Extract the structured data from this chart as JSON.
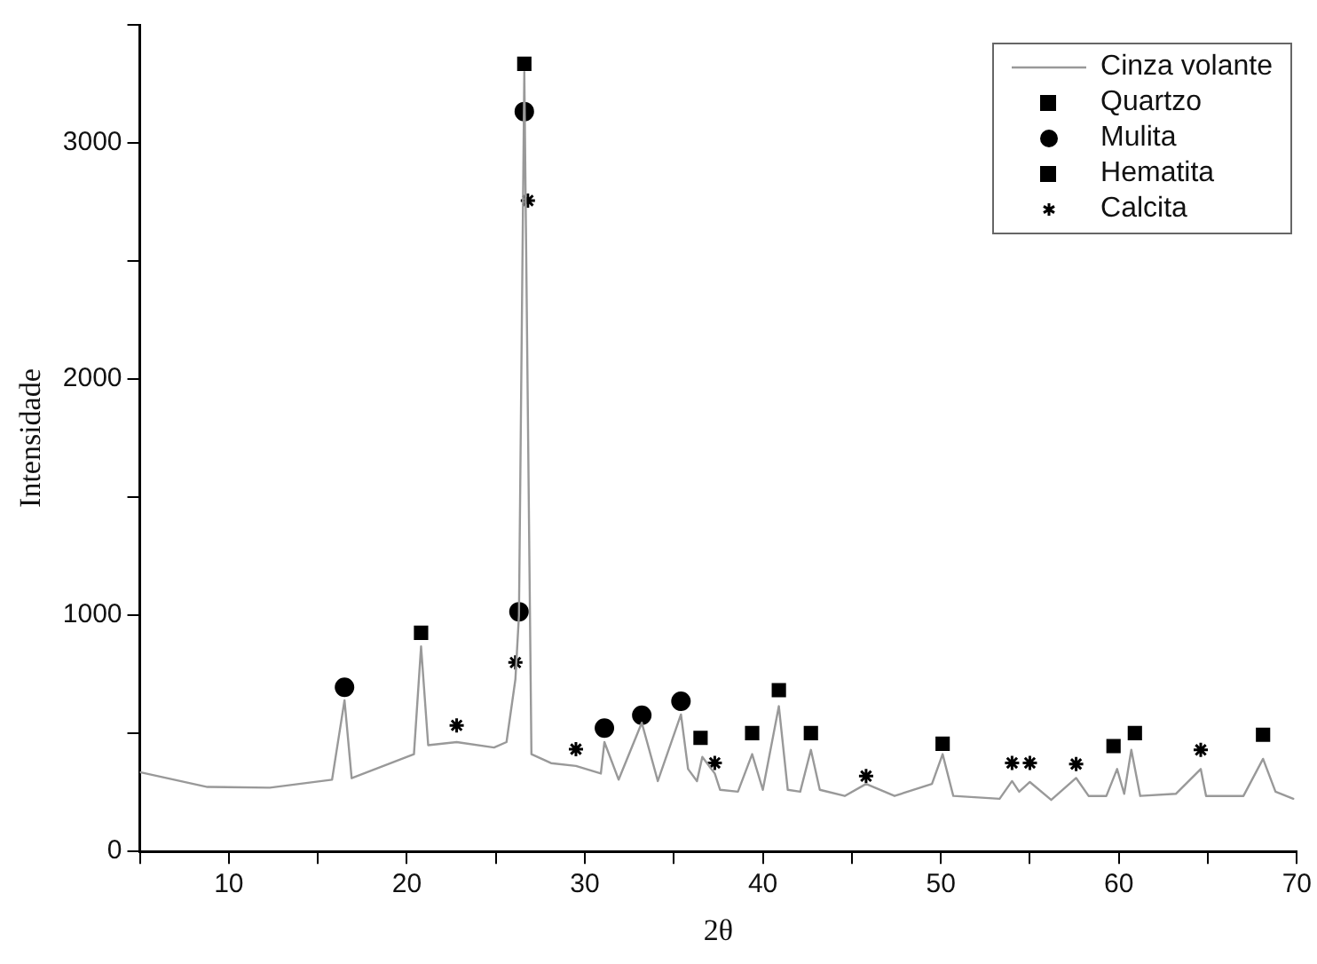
{
  "chart_data": {
    "type": "line",
    "xlabel": "2θ",
    "ylabel": "Intensidade",
    "xlim": [
      5,
      70
    ],
    "xticks": [
      {
        "value": 5,
        "label": null
      },
      10,
      {
        "value": 15,
        "label": null
      },
      20,
      {
        "value": 25,
        "label": null
      },
      30,
      {
        "value": 35,
        "label": null
      },
      40,
      {
        "value": 45,
        "label": null
      },
      50,
      {
        "value": 55,
        "label": null
      },
      60,
      {
        "value": 65,
        "label": null
      },
      70
    ],
    "ylim": [
      0,
      3500
    ],
    "yticks": [
      0,
      {
        "value": 500,
        "label": null
      },
      1000,
      {
        "value": 1500,
        "label": null
      },
      2000,
      {
        "value": 2500,
        "label": null
      },
      3000,
      {
        "value": 3500,
        "label": null
      }
    ],
    "grid": false,
    "legend": "top right",
    "series": [
      {
        "name": "Cinza volante",
        "color": "#999999",
        "marker": "none",
        "x": [
          5,
          8.8,
          12.3,
          15.8,
          16.5,
          16.9,
          20.4,
          20.8,
          21.2,
          22.8,
          24.9,
          25.6,
          26.1,
          26.3,
          26.6,
          27.0,
          28.1,
          29.5,
          30.9,
          31.1,
          31.9,
          33.2,
          34.1,
          35.4,
          35.8,
          36.3,
          36.6,
          37.3,
          37.6,
          38.6,
          39.4,
          40.0,
          40.9,
          41.4,
          42.1,
          42.7,
          43.2,
          44.6,
          45.8,
          47.4,
          49.5,
          50.1,
          50.7,
          53.3,
          54.0,
          54.4,
          55.0,
          56.2,
          57.6,
          58.3,
          59.3,
          59.9,
          60.3,
          60.7,
          61.2,
          63.2,
          64.6,
          64.9,
          67.0,
          68.1,
          68.8,
          69.8
        ],
        "values": [
          336,
          273,
          270,
          304,
          640,
          310,
          412,
          868,
          450,
          463,
          440,
          463,
          729,
          1000,
          3300,
          412,
          374,
          362,
          330,
          463,
          304,
          545,
          298,
          580,
          349,
          298,
          400,
          330,
          261,
          253,
          412,
          261,
          615,
          261,
          253,
          430,
          261,
          235,
          286,
          235,
          286,
          412,
          235,
          223,
          298,
          253,
          294,
          218,
          311,
          235,
          235,
          349,
          244,
          430,
          235,
          244,
          349,
          235,
          235,
          392,
          253,
          223
        ]
      },
      {
        "name": "Quartzo",
        "type": "scatter",
        "color": "#000000",
        "marker": "square",
        "x": [
          20.8,
          26.6,
          39.4,
          42.7,
          50.1,
          60.9,
          68.1
        ],
        "values": [
          926,
          3335,
          501,
          501,
          456,
          501,
          494
        ]
      },
      {
        "name": "Mulita",
        "type": "scatter",
        "color": "#000000",
        "marker": "circle",
        "x": [
          16.5,
          26.3,
          26.6,
          31.1,
          33.2,
          35.4
        ],
        "values": [
          695,
          1015,
          3133,
          522,
          577,
          636
        ]
      },
      {
        "name": "Hematita",
        "type": "scatter",
        "color": "#000000",
        "marker": "square",
        "x": [
          36.5,
          40.9,
          59.7
        ],
        "values": [
          481,
          683,
          446
        ]
      },
      {
        "name": "Calcita",
        "type": "scatter",
        "color": "#000000",
        "marker": "cross",
        "x": [
          22.8,
          26.1,
          26.8,
          29.5,
          37.3,
          45.8,
          54.0,
          55.0,
          57.6,
          64.6
        ],
        "values": [
          534,
          800,
          2756,
          433,
          375,
          319,
          375,
          375,
          370,
          430
        ]
      }
    ]
  }
}
